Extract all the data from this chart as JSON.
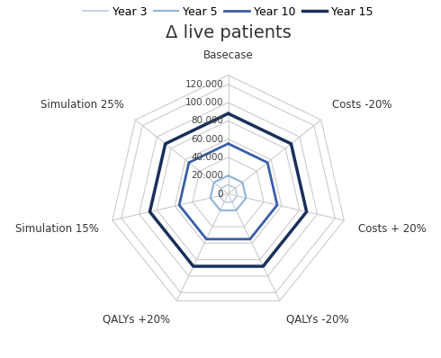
{
  "title": "Δ live patients",
  "categories": [
    "Basecase",
    "Costs -20%",
    "Costs + 20%",
    "QALYs -20%",
    "QALYs +20%",
    "Simulation 15%",
    "Simulation 25%"
  ],
  "series": {
    "Year 3": [
      10000,
      10000,
      10000,
      10000,
      10000,
      10000,
      10000
    ],
    "Year 5": [
      20000,
      20000,
      20000,
      20000,
      20000,
      20000,
      20000
    ],
    "Year 10": [
      55000,
      55000,
      55000,
      55000,
      55000,
      55000,
      55000
    ],
    "Year 15": [
      88000,
      88000,
      88000,
      88000,
      88000,
      88000,
      88000
    ]
  },
  "colors": {
    "Year 3": "#b8cce4",
    "Year 5": "#8fb4d9",
    "Year 10": "#3a5ea8",
    "Year 15": "#1a2f5a"
  },
  "linewidths": {
    "Year 3": 1.2,
    "Year 5": 1.5,
    "Year 10": 2.0,
    "Year 15": 2.5
  },
  "r_ticks": [
    0,
    20000,
    40000,
    60000,
    80000,
    100000,
    120000
  ],
  "r_tick_labels": [
    "0",
    "20.000",
    "40.000",
    "60.000",
    "80.000",
    "100.000",
    "120.000"
  ],
  "r_max": 130000,
  "grid_color": "#cccccc",
  "background_color": "#ffffff",
  "legend_order": [
    "Year 3",
    "Year 5",
    "Year 10",
    "Year 15"
  ],
  "label_fontsize": 8.5,
  "tick_fontsize": 7.5,
  "title_fontsize": 14
}
